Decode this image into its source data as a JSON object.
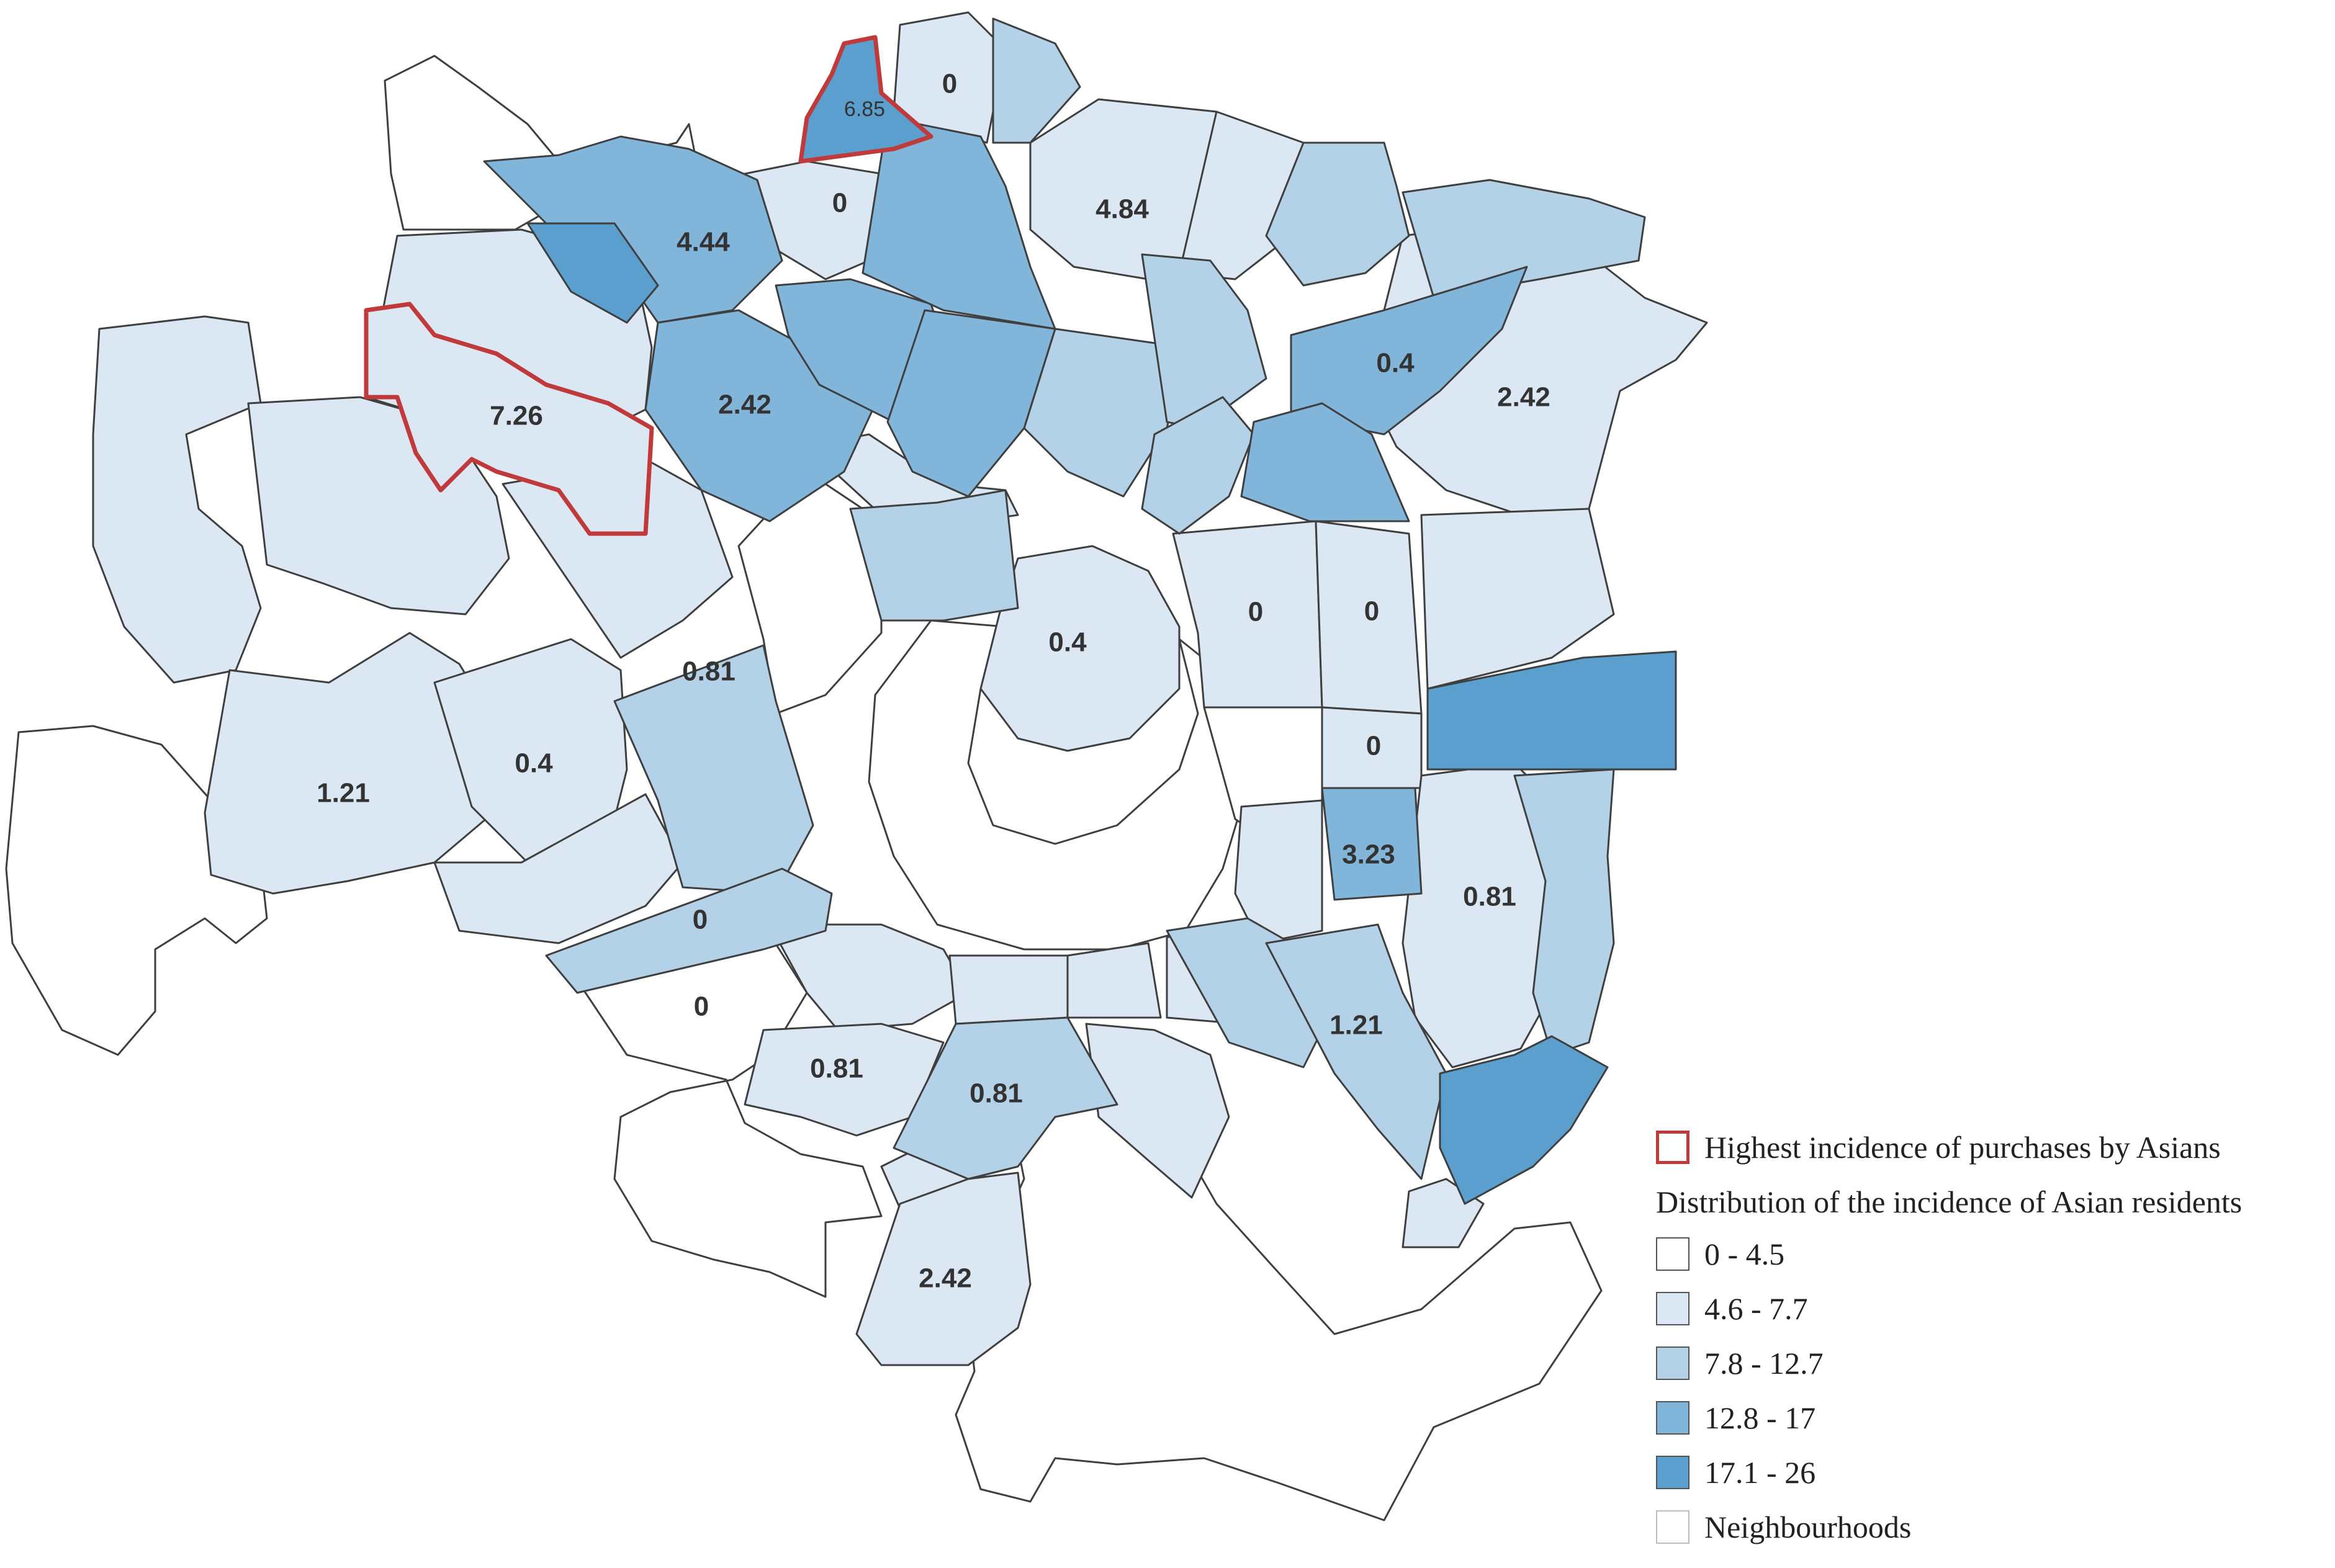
{
  "map": {
    "colors": {
      "class_0_4_5": "#ffffff",
      "class_4_6_7_7": "#dbe8f3",
      "class_7_8_12_7": "#b3d1e7",
      "class_12_8_17": "#82b5da",
      "class_17_1_26": "#5a9fcd",
      "highlight_outline": "#c0393b",
      "boundary": "#3f3f3f"
    },
    "labels": [
      {
        "id": "v-685",
        "text": "6.85"
      },
      {
        "id": "v-0-north",
        "text": "0"
      },
      {
        "id": "v-0-north-2",
        "text": "0"
      },
      {
        "id": "v-444",
        "text": "4.44"
      },
      {
        "id": "v-484",
        "text": "4.84"
      },
      {
        "id": "v-726",
        "text": "7.26"
      },
      {
        "id": "v-242-nw",
        "text": "2.42"
      },
      {
        "id": "v-04-ne",
        "text": "0.4"
      },
      {
        "id": "v-242-ne",
        "text": "2.42"
      },
      {
        "id": "v-0-e1",
        "text": "0"
      },
      {
        "id": "v-0-e2",
        "text": "0"
      },
      {
        "id": "v-04-center",
        "text": "0.4"
      },
      {
        "id": "v-081-w",
        "text": "0.81"
      },
      {
        "id": "v-121-w",
        "text": "1.21"
      },
      {
        "id": "v-04-w",
        "text": "0.4"
      },
      {
        "id": "v-0-e3",
        "text": "0"
      },
      {
        "id": "v-323",
        "text": "3.23"
      },
      {
        "id": "v-081-e",
        "text": "0.81"
      },
      {
        "id": "v-0-sw1",
        "text": "0"
      },
      {
        "id": "v-0-sw2",
        "text": "0"
      },
      {
        "id": "v-121-se",
        "text": "1.21"
      },
      {
        "id": "v-081-s1",
        "text": "0.81"
      },
      {
        "id": "v-081-s2",
        "text": "0.81"
      },
      {
        "id": "v-242-s",
        "text": "2.42"
      }
    ]
  },
  "legend": {
    "highlight_label": "Highest incidence of purchases by Asians",
    "distribution_title": "Distribution of the incidence of Asian residents",
    "classes": [
      {
        "label": "0 - 4.5",
        "color": "#ffffff"
      },
      {
        "label": "4.6 - 7.7",
        "color": "#dbe8f3"
      },
      {
        "label": "7.8 - 12.7",
        "color": "#b3d1e7"
      },
      {
        "label": "12.8 - 17",
        "color": "#82b5da"
      },
      {
        "label": "17.1 - 26",
        "color": "#5a9fcd"
      }
    ],
    "neighbourhoods_label": "Neighbourhoods"
  }
}
